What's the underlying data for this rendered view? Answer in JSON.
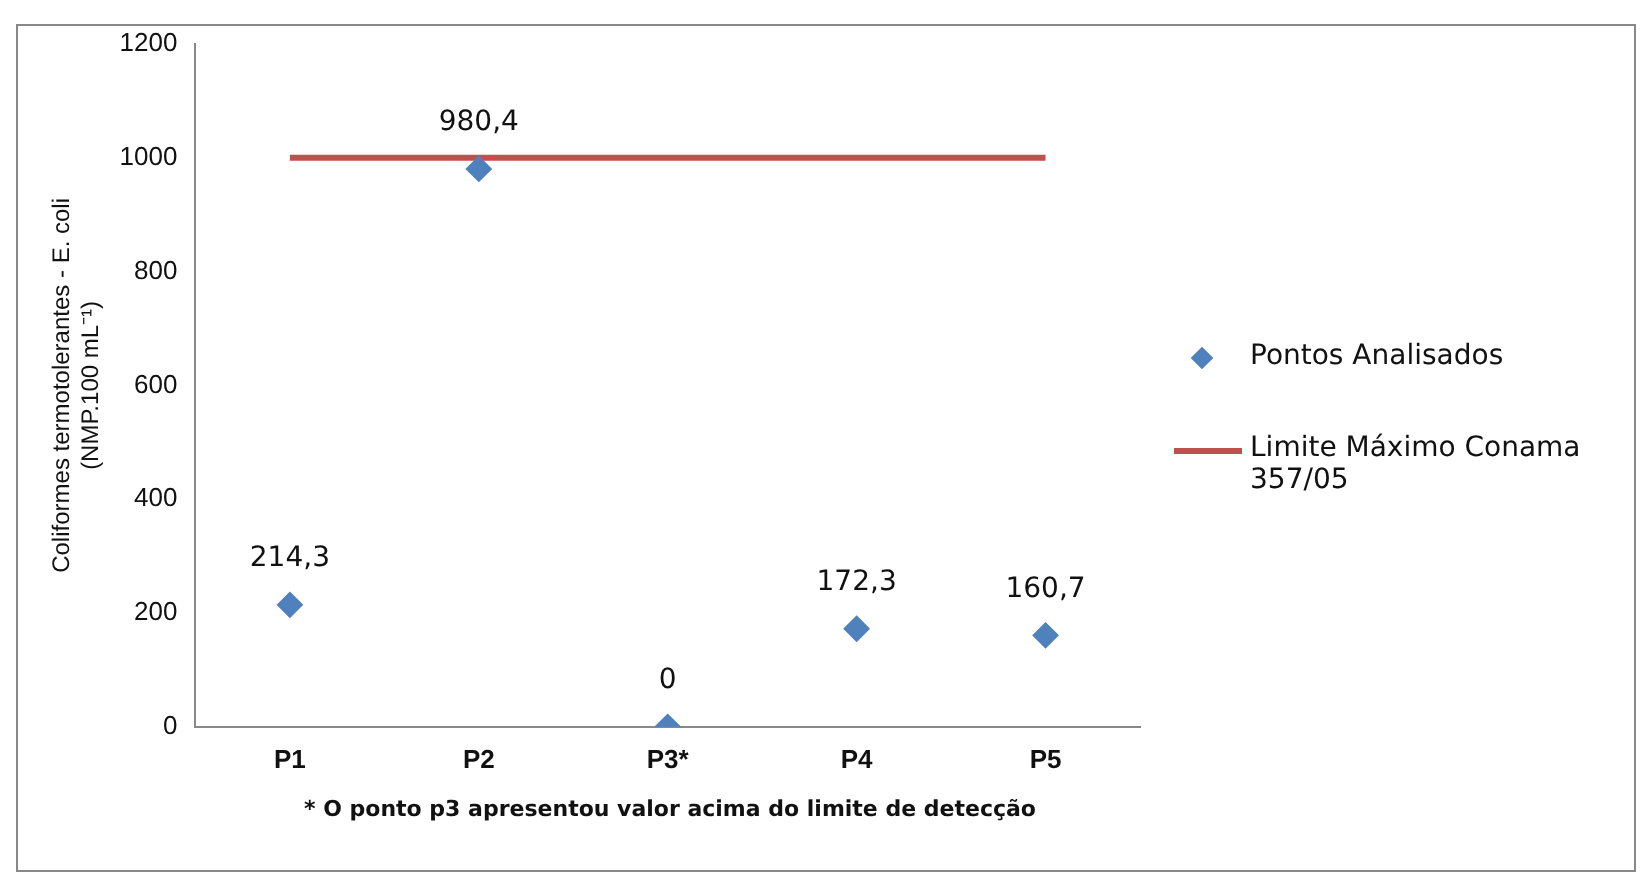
{
  "chart_data": {
    "type": "scatter",
    "categories": [
      "P1",
      "P2",
      "P3*",
      "P4",
      "P5"
    ],
    "ylabel": "Coliformes termotolerantes - E. coli\n(NMP.100 mL⁻¹)",
    "ylim": [
      0,
      1200
    ],
    "yticks": [
      0,
      200,
      400,
      600,
      800,
      1000,
      1200
    ],
    "grid": false,
    "legend": "right",
    "annotations": [
      "* O ponto p3 apresentou valor acima do limite de detecção"
    ],
    "series": [
      {
        "name": "Pontos Analisados",
        "marker": "diamond",
        "color": "#4f81bd",
        "values": [
          214.3,
          980.4,
          0,
          172.3,
          160.7
        ],
        "value_labels": [
          "214,3",
          "980,4",
          "0",
          "172,3",
          "160,7"
        ]
      },
      {
        "name": "Limite Máximo Conama 357/05",
        "type": "line",
        "marker": "none",
        "color": "#c0504d",
        "values": [
          1000,
          1000,
          1000,
          1000,
          1000
        ]
      }
    ]
  }
}
